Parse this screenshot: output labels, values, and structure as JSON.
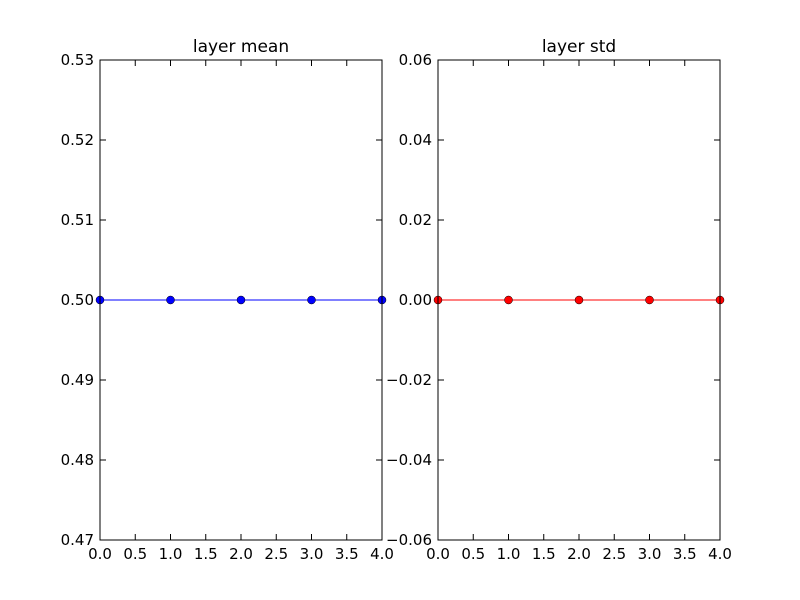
{
  "chart_data": [
    {
      "type": "line",
      "title": "layer mean",
      "x": [
        0,
        1,
        2,
        3,
        4
      ],
      "values": [
        0.5,
        0.5,
        0.5,
        0.5,
        0.5
      ],
      "color": "#0000ff",
      "xlim": [
        0,
        4
      ],
      "xticks": [
        {
          "value": 0,
          "label": "0.0"
        },
        0.5,
        {
          "value": 1,
          "label": "1.0"
        },
        1.5,
        {
          "value": 2,
          "label": "2.0"
        },
        2.5,
        {
          "value": 3,
          "label": "3.0"
        },
        3.5,
        {
          "value": 4,
          "label": "4.0"
        }
      ],
      "ylim": [
        0.47,
        0.53
      ],
      "yticks": [
        0.47,
        0.48,
        0.49,
        {
          "value": 0.5,
          "label": "0.50"
        },
        0.51,
        0.52,
        0.53
      ]
    },
    {
      "type": "line",
      "title": "layer std",
      "x": [
        0,
        1,
        2,
        3,
        4
      ],
      "values": [
        0,
        0,
        0,
        0,
        0
      ],
      "color": "#ff0000",
      "xlim": [
        0,
        4
      ],
      "xticks": [
        {
          "value": 0,
          "label": "0.0"
        },
        0.5,
        {
          "value": 1,
          "label": "1.0"
        },
        1.5,
        {
          "value": 2,
          "label": "2.0"
        },
        2.5,
        {
          "value": 3,
          "label": "3.0"
        },
        3.5,
        {
          "value": 4,
          "label": "4.0"
        }
      ],
      "ylim": [
        -0.06,
        0.06
      ],
      "yticks": [
        {
          "value": -0.06,
          "label": "−0.06"
        },
        {
          "value": -0.04,
          "label": "−0.04"
        },
        {
          "value": -0.02,
          "label": "−0.02"
        },
        {
          "value": 0,
          "label": "0.00"
        },
        0.02,
        0.04,
        0.06
      ]
    }
  ]
}
